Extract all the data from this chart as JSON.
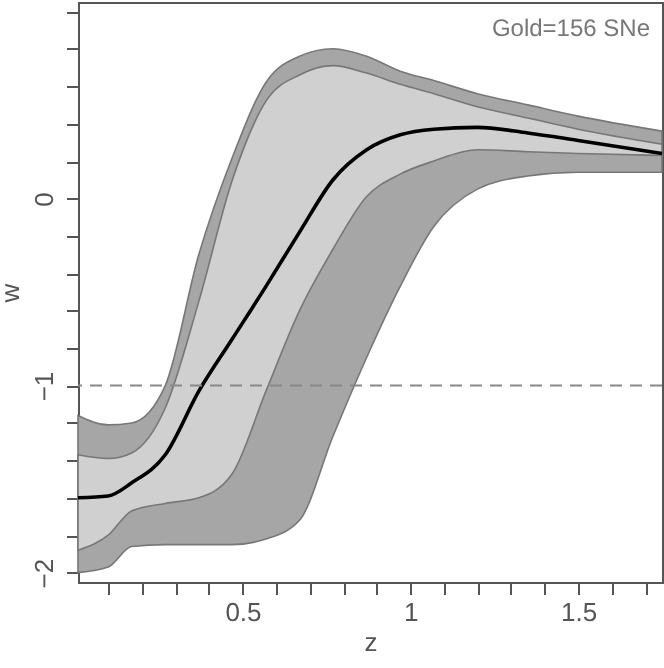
{
  "chart_data": {
    "type": "line",
    "xlabel": "z",
    "ylabel": "w",
    "annotations": [
      "Gold=156 SNe"
    ],
    "x": [
      0.01,
      0.1,
      0.17,
      0.27,
      0.37,
      0.47,
      0.57,
      0.67,
      0.77,
      0.87,
      0.97,
      1.07,
      1.2,
      1.35,
      1.5,
      1.75
    ],
    "series": [
      {
        "color": "#a6a6a6",
        "values": [
          null,
          null,
          null,
          null,
          null,
          null,
          null,
          null,
          null,
          null,
          null,
          null,
          null,
          null,
          null,
          null
        ],
        "lower": [
          -2.0,
          -1.97,
          -1.86,
          -1.85,
          -1.85,
          -1.85,
          -1.82,
          -1.72,
          -1.27,
          -0.85,
          -0.47,
          -0.15,
          0.05,
          0.12,
          0.14,
          0.14
        ],
        "upper": [
          -1.16,
          -1.21,
          -1.2,
          -1.0,
          -0.3,
          0.22,
          0.62,
          0.76,
          0.8,
          0.76,
          0.68,
          0.63,
          0.56,
          0.5,
          0.44,
          0.36
        ]
      },
      {
        "color": "#d0d0d0",
        "values": [
          null,
          null,
          null,
          null,
          null,
          null,
          null,
          null,
          null,
          null,
          null,
          null,
          null,
          null,
          null,
          null
        ],
        "lower": [
          -1.88,
          -1.8,
          -1.67,
          -1.63,
          -1.6,
          -1.47,
          -1.03,
          -0.6,
          -0.27,
          0.01,
          0.13,
          0.2,
          0.26,
          0.25,
          0.24,
          0.23
        ],
        "upper": [
          -1.37,
          -1.39,
          -1.36,
          -1.12,
          -0.55,
          0.1,
          0.52,
          0.66,
          0.71,
          0.67,
          0.61,
          0.56,
          0.49,
          0.43,
          0.37,
          0.29
        ]
      },
      {
        "color": "#000000",
        "values": [
          -1.6,
          -1.59,
          -1.52,
          -1.37,
          -1.03,
          -0.75,
          -0.47,
          -0.18,
          0.1,
          0.26,
          0.34,
          0.37,
          0.38,
          0.35,
          0.31,
          0.24
        ]
      }
    ],
    "xlim": [
      0.01,
      1.75
    ],
    "ylim": [
      -2.05,
      1.05
    ],
    "xticks": [
      {
        "value": 0.1,
        "label": null
      },
      {
        "value": 0.2,
        "label": null
      },
      {
        "value": 0.3,
        "label": null
      },
      {
        "value": 0.4,
        "label": null
      },
      0.5,
      {
        "value": 0.6,
        "label": null
      },
      {
        "value": 0.7,
        "label": null
      },
      {
        "value": 0.8,
        "label": null
      },
      {
        "value": 0.9,
        "label": null
      },
      1,
      {
        "value": 1.1,
        "label": null
      },
      {
        "value": 1.2,
        "label": null
      },
      {
        "value": 1.3,
        "label": null
      },
      {
        "value": 1.4,
        "label": null
      },
      1.5,
      {
        "value": 1.6,
        "label": null
      },
      {
        "value": 1.7,
        "label": null
      }
    ],
    "yticks": [
      {
        "value": -2,
        "label": "−2"
      },
      {
        "value": -1.8,
        "label": null
      },
      {
        "value": -1.6,
        "label": null
      },
      {
        "value": -1.4,
        "label": null
      },
      {
        "value": -1.2,
        "label": null
      },
      {
        "value": -1,
        "label": "−1"
      },
      {
        "value": -0.8,
        "label": null
      },
      {
        "value": -0.6,
        "label": null
      },
      {
        "value": -0.4,
        "label": null
      },
      {
        "value": -0.2,
        "label": null
      },
      0,
      {
        "value": 0.2,
        "label": null
      },
      {
        "value": 0.4,
        "label": null
      },
      {
        "value": 0.6,
        "label": null
      },
      {
        "value": 0.8,
        "label": null
      },
      {
        "value": 1,
        "label": null
      }
    ],
    "ref_lines": [
      {
        "axis": "y",
        "value": -1,
        "color": "#888888",
        "line_style": "dashed"
      }
    ],
    "marker": "none",
    "line_style": "solid",
    "grid": false
  }
}
